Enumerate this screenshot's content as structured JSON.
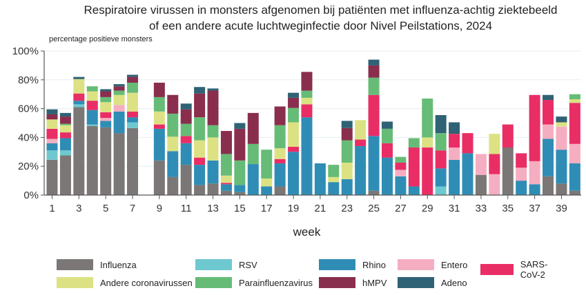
{
  "chart_data": {
    "type": "bar",
    "stacked": true,
    "title": "Respiratoire virussen in monsters afgenomen bij patiënten met influenza-achtig ziektebeeld",
    "subtitle": "of een andere acute luchtweginfectie door Nivel Peilstations, 2024",
    "ylabel": "percentage positieve monsters",
    "xlabel": "week",
    "ylim": [
      0,
      100
    ],
    "yticks": [
      "0%",
      "20%",
      "40%",
      "60%",
      "80%",
      "100%"
    ],
    "ytick_values": [
      0,
      20,
      40,
      60,
      80,
      100
    ],
    "xticks": [
      "1",
      "3",
      "5",
      "7",
      "9",
      "11",
      "13",
      "15",
      "17",
      "19",
      "21",
      "23",
      "25",
      "27",
      "29",
      "31",
      "33",
      "35",
      "37",
      "39"
    ],
    "grid": true,
    "legend_position": "bottom",
    "categories": [
      "1",
      "2",
      "3",
      "4",
      "5",
      "6",
      "7",
      "8",
      "9",
      "10",
      "11",
      "12",
      "13",
      "14",
      "15",
      "16",
      "17",
      "18",
      "19",
      "20",
      "21",
      "22",
      "23",
      "24",
      "25",
      "26",
      "27",
      "28",
      "29",
      "30",
      "31",
      "32",
      "33",
      "34",
      "35",
      "36",
      "37",
      "38",
      "39",
      "40"
    ],
    "series": [
      {
        "name": "Influenza",
        "color": "#7a7776",
        "values": [
          24.5,
          27.5,
          61,
          48,
          47,
          43,
          46.5,
          0,
          24,
          12.5,
          21,
          7,
          8,
          3,
          2,
          0,
          0,
          6,
          0,
          0,
          0,
          0,
          0,
          0,
          3,
          0,
          0,
          0,
          0,
          0,
          0,
          0,
          14,
          0,
          33,
          0,
          0,
          13,
          8,
          3
        ]
      },
      {
        "name": "RSV",
        "color": "#6ec8cf",
        "values": [
          6.5,
          3.5,
          2,
          1,
          0,
          0,
          4,
          0,
          0,
          0,
          0,
          0,
          0,
          0,
          0,
          0,
          0,
          0,
          0,
          0,
          0,
          0,
          0,
          0,
          0,
          0,
          0,
          0,
          0,
          6,
          0,
          0,
          0,
          0,
          0,
          0,
          0,
          0,
          0,
          0
        ]
      },
      {
        "name": "Rhino",
        "color": "#2f8db5",
        "values": [
          5,
          8.5,
          2.5,
          10,
          4.5,
          15,
          3.5,
          0,
          22,
          18,
          15,
          14,
          16,
          4.5,
          5,
          21.5,
          6,
          16,
          30,
          54,
          22,
          9,
          11,
          34,
          38,
          26,
          13,
          6,
          0,
          12.5,
          24.5,
          29,
          0,
          0,
          0,
          10,
          7.5,
          26,
          23.5,
          19
        ]
      },
      {
        "name": "Entero",
        "color": "#f5aec1",
        "values": [
          3,
          0,
          0,
          0,
          2,
          4.5,
          0,
          0,
          0,
          0,
          0,
          0,
          0,
          0,
          0,
          0,
          0,
          0,
          0,
          0,
          0,
          0,
          0,
          0,
          0,
          0,
          4.5,
          0,
          0,
          0,
          8.5,
          0,
          14.5,
          14.5,
          0,
          9,
          16,
          10,
          16,
          13.5
        ]
      },
      {
        "name": "SARS-CoV-2",
        "color": "#e92d65",
        "values": [
          7,
          4,
          5,
          6.5,
          4,
          0,
          4,
          0,
          3,
          0,
          5,
          5,
          0,
          1,
          0,
          0,
          0,
          3,
          3.5,
          9,
          0,
          0,
          0,
          4.5,
          28.5,
          10,
          5,
          27,
          33,
          12.5,
          9.5,
          14,
          0,
          14,
          16,
          10,
          46,
          17,
          0,
          28.5
        ]
      },
      {
        "name": "Andere coronavirussen",
        "color": "#dce283",
        "values": [
          6.5,
          5,
          10,
          6.5,
          7,
          7,
          13,
          0,
          9,
          10,
          0,
          12,
          16,
          5,
          0,
          0,
          5.5,
          7.5,
          17,
          4.5,
          0,
          3.5,
          11.5,
          13.5,
          0,
          0,
          0,
          0,
          7,
          0,
          0,
          0,
          0,
          14,
          0,
          0,
          0,
          0,
          3,
          2.5
        ]
      },
      {
        "name": "Parainfluenzavirus",
        "color": "#66bc76",
        "values": [
          0,
          1,
          0,
          3.5,
          3.5,
          3,
          7,
          0,
          10,
          16,
          8.5,
          16,
          8.5,
          15,
          17,
          14,
          20,
          16,
          10,
          5,
          0,
          8.5,
          15.5,
          0,
          12,
          10,
          4,
          6.5,
          27,
          12,
          0,
          0,
          0,
          0,
          0,
          0,
          0,
          0,
          0,
          3.5
        ]
      },
      {
        "name": "hMPV",
        "color": "#8a2e4d",
        "values": [
          3.5,
          5,
          0,
          0,
          4,
          3,
          4,
          0,
          10,
          13,
          10,
          16.5,
          24,
          16,
          22,
          21.5,
          0,
          13,
          7,
          13,
          0,
          0,
          8.5,
          0,
          8.5,
          0,
          0,
          0,
          0,
          0,
          0,
          0,
          0,
          0,
          0,
          0,
          0,
          0,
          0,
          0
        ]
      },
      {
        "name": "Adeno",
        "color": "#2f6274",
        "values": [
          3.5,
          2.5,
          1.5,
          0,
          1.5,
          1.5,
          1.5,
          0,
          0,
          0,
          4,
          4.5,
          1.5,
          0,
          4,
          0,
          0,
          0,
          3.5,
          0,
          0,
          0,
          5,
          0,
          4,
          5,
          0,
          0,
          0,
          12.5,
          8,
          0,
          0,
          0,
          0,
          0,
          0,
          3.5,
          4,
          0
        ]
      }
    ]
  },
  "legend": {
    "items": [
      {
        "label": "Influenza",
        "color": "#7a7776"
      },
      {
        "label": "RSV",
        "color": "#6ec8cf"
      },
      {
        "label": "Rhino",
        "color": "#2f8db5"
      },
      {
        "label": "Entero",
        "color": "#f5aec1"
      },
      {
        "label": "SARS-CoV-2",
        "color": "#e92d65"
      },
      {
        "label": "Andere coronavirussen",
        "color": "#dce283"
      },
      {
        "label": "Parainfluenzavirus",
        "color": "#66bc76"
      },
      {
        "label": "hMPV",
        "color": "#8a2e4d"
      },
      {
        "label": "Adeno",
        "color": "#2f6274"
      }
    ]
  }
}
